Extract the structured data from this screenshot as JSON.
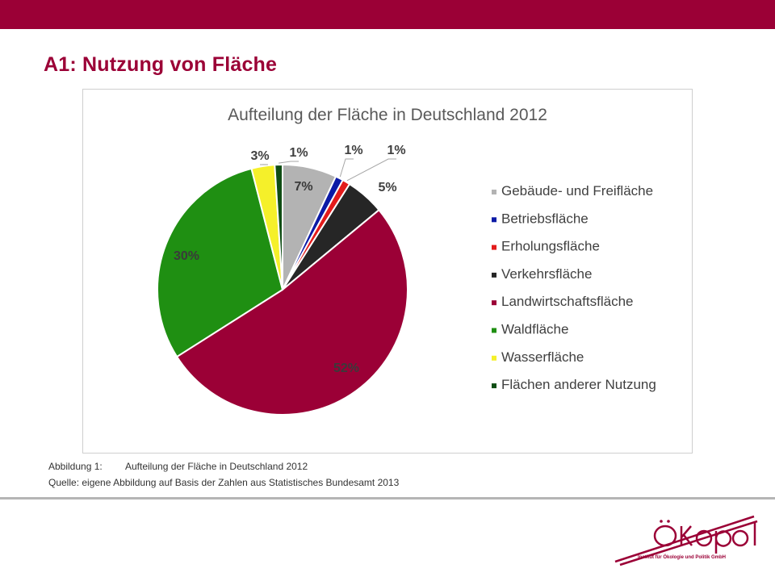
{
  "slide": {
    "title": "A1: Nutzung von Fläche",
    "caption_prefix": "Abbildung 1:",
    "caption_text": "Aufteilung der Fläche in Deutschland 2012",
    "source": "Quelle: eigene Abbildung auf Basis der Zahlen aus Statistisches Bundesamt 2013"
  },
  "logo": {
    "name": "Ökopol",
    "subtitle": "Institut für Ökologie und Politik GmbH",
    "color": "#9b0036"
  },
  "colors": {
    "brand": "#9b0036"
  },
  "chart_data": {
    "type": "pie",
    "title": "Aufteilung der Fläche in Deutschland 2012",
    "unit": "%",
    "legend_position": "right",
    "slices": [
      {
        "name": "Gebäude- und Freifläche",
        "value": 7,
        "label": "7%",
        "color": "#b3b3b3"
      },
      {
        "name": "Betriebsfläche",
        "value": 1,
        "label": "1%",
        "color": "#0b1aa6"
      },
      {
        "name": "Erholungsfläche",
        "value": 1,
        "label": "1%",
        "color": "#e31b1b"
      },
      {
        "name": "Verkehrsfläche",
        "value": 5,
        "label": "5%",
        "color": "#262626"
      },
      {
        "name": "Landwirtschaftsfläche",
        "value": 52,
        "label": "52%",
        "color": "#9b0036"
      },
      {
        "name": "Waldfläche",
        "value": 30,
        "label": "30%",
        "color": "#1f8f12"
      },
      {
        "name": "Wasserfläche",
        "value": 3,
        "label": "3%",
        "color": "#f5f02a"
      },
      {
        "name": "Flächen anderer Nutzung",
        "value": 1,
        "label": "1%",
        "color": "#0f4d14"
      }
    ]
  }
}
